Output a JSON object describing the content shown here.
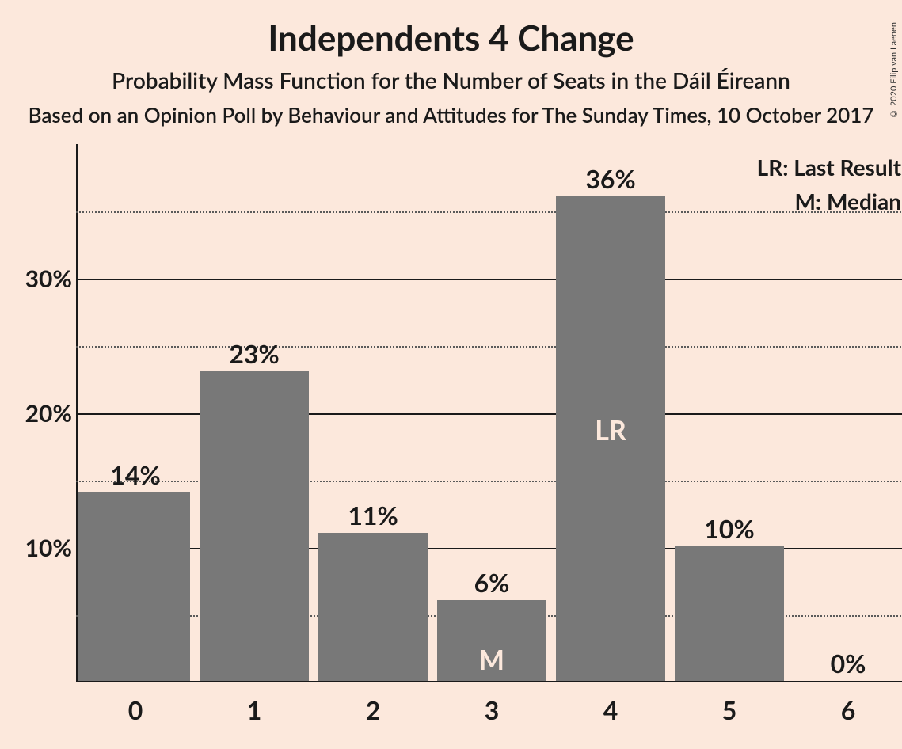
{
  "titles": {
    "main": "Independents 4 Change",
    "sub1": "Probability Mass Function for the Number of Seats in the Dáil Éireann",
    "sub2": "Based on an Opinion Poll by Behaviour and Attitudes for The Sunday Times, 10 October 2017"
  },
  "copyright": "© 2020 Filip van Laenen",
  "legend": {
    "lr": "LR: Last Result",
    "m": "M: Median"
  },
  "chart": {
    "type": "bar",
    "background_color": "#fce8dc",
    "bar_color": "#787878",
    "text_color": "#1a1a1a",
    "bar_inner_text_color": "#fce8dc",
    "grid_solid_color": "#1a1a1a",
    "grid_dotted_color": "#5a5a5a",
    "title_fontsize": 44,
    "subtitle_fontsize": 28,
    "label_fontsize": 30,
    "bar_label_fontsize": 32,
    "y_max_pct": 40,
    "y_major_ticks": [
      10,
      20,
      30
    ],
    "y_minor_ticks": [
      5,
      15,
      25,
      35
    ],
    "x_categories": [
      "0",
      "1",
      "2",
      "3",
      "4",
      "5",
      "6"
    ],
    "values_pct": [
      14,
      23,
      11,
      6,
      36,
      10,
      0
    ],
    "value_labels": [
      "14%",
      "23%",
      "11%",
      "6%",
      "36%",
      "10%",
      "0%"
    ],
    "bar_width_ratio": 0.92,
    "lr_index": 4,
    "m_index": 3,
    "lr_text": "LR",
    "m_text": "M"
  }
}
